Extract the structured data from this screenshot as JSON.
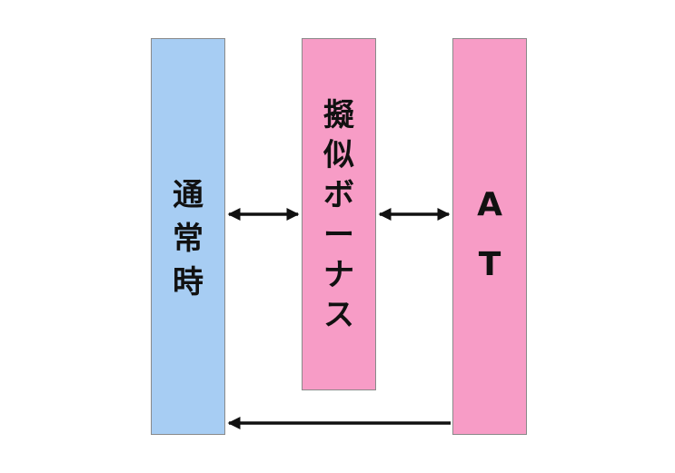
{
  "colors": {
    "normal_fill": "#a7cdf3",
    "pink_fill": "#f79cc6",
    "border": "#8a8a8a",
    "text": "#111111",
    "arrow": "#111111"
  },
  "nodes": {
    "normal": {
      "label": "通常時",
      "chars": [
        "通",
        "常",
        "時"
      ]
    },
    "pseudo_bonus": {
      "label": "擬似ボーナス",
      "chars": [
        "擬",
        "似",
        "ボ",
        "ー",
        "ナ",
        "ス"
      ]
    },
    "at": {
      "label": "AT",
      "chars": [
        "A",
        "T"
      ]
    }
  },
  "edges": [
    {
      "from": "normal",
      "to": "pseudo_bonus",
      "direction": "both"
    },
    {
      "from": "pseudo_bonus",
      "to": "at",
      "direction": "both"
    },
    {
      "from": "at",
      "to": "normal",
      "direction": "forward"
    }
  ]
}
